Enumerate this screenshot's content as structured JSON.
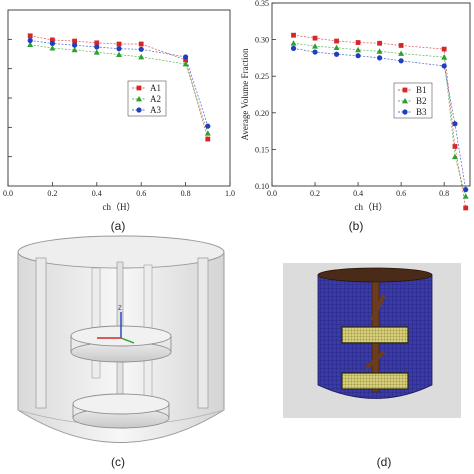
{
  "charts": [
    {
      "id": "a",
      "caption": "(a)",
      "chart_data": {
        "type": "line",
        "x": [
          0.1,
          0.2,
          0.3,
          0.4,
          0.5,
          0.6,
          0.8,
          0.9
        ],
        "series": [
          {
            "name": "A1",
            "color": "#d62728",
            "marker": "square",
            "values": [
              0.306,
              0.299,
              0.297,
              0.294,
              0.292,
              0.292,
              0.265,
              0.13
            ]
          },
          {
            "name": "A2",
            "color": "#2ca02c",
            "marker": "triangle",
            "values": [
              0.291,
              0.285,
              0.282,
              0.278,
              0.274,
              0.27,
              0.258,
              0.14
            ]
          },
          {
            "name": "A3",
            "color": "#1f3fbf",
            "marker": "circle",
            "values": [
              0.298,
              0.293,
              0.29,
              0.287,
              0.284,
              0.283,
              0.27,
              0.152
            ]
          }
        ],
        "xlabel": "ch（H）",
        "ylabel": "",
        "xlim": [
          0.0,
          1.0
        ],
        "ylim": [
          0.05,
          0.35
        ],
        "xticks": [
          "0.0",
          "0.2",
          "0.4",
          "0.6",
          "0.8",
          "1.0"
        ],
        "legend": "right"
      }
    },
    {
      "id": "b",
      "caption": "(b)",
      "chart_data": {
        "type": "line",
        "x": [
          0.1,
          0.2,
          0.3,
          0.4,
          0.5,
          0.6,
          0.8,
          0.85,
          0.9
        ],
        "series": [
          {
            "name": "B1",
            "color": "#d62728",
            "marker": "square",
            "values": [
              0.306,
              0.302,
              0.298,
              0.296,
              0.295,
              0.292,
              0.287,
              0.154,
              0.07
            ]
          },
          {
            "name": "B2",
            "color": "#2ca02c",
            "marker": "triangle",
            "values": [
              0.295,
              0.291,
              0.289,
              0.286,
              0.284,
              0.281,
              0.276,
              0.14,
              0.086
            ]
          },
          {
            "name": "B3",
            "color": "#1f3fbf",
            "marker": "circle",
            "values": [
              0.288,
              0.283,
              0.28,
              0.278,
              0.275,
              0.271,
              0.264,
              0.185,
              0.095
            ]
          }
        ],
        "xlabel": "ch（H）",
        "ylabel": "Average Volume Fraction",
        "xlim": [
          0.0,
          0.92
        ],
        "ylim": [
          0.1,
          0.35
        ],
        "xticks": [
          "0.0",
          "0.2",
          "0.4",
          "0.6",
          "0.8"
        ],
        "yticks": [
          "0.10",
          "0.15",
          "0.20",
          "0.25",
          "0.30",
          "0.35"
        ],
        "legend": "right"
      }
    }
  ],
  "panel_c": {
    "caption": "(c)",
    "axis_label": "Z"
  },
  "panel_d": {
    "caption": "(d)"
  }
}
